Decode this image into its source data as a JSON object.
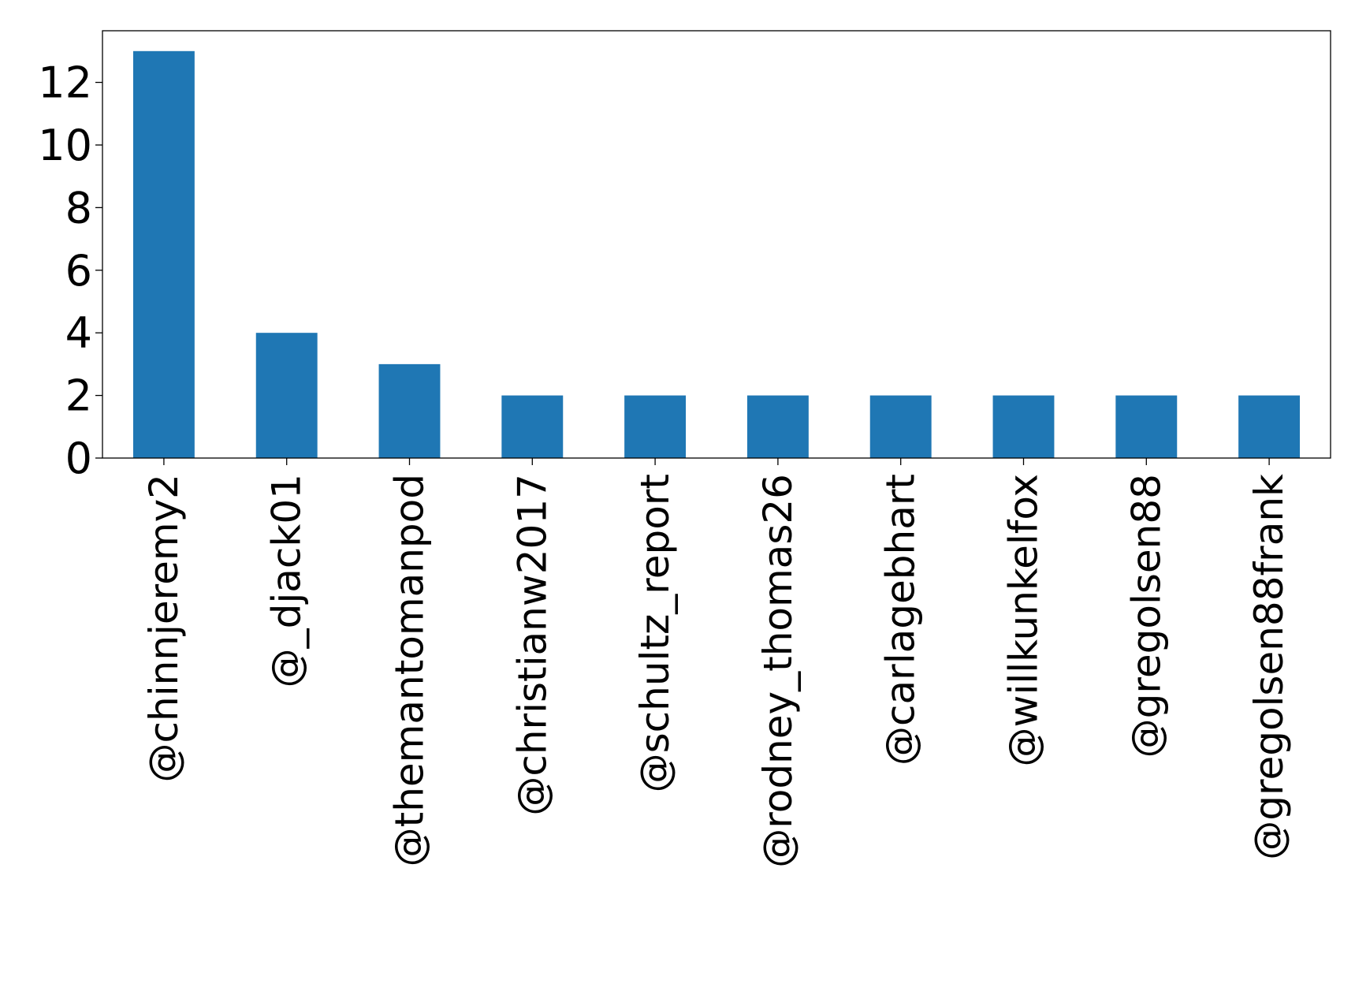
{
  "chart_data": {
    "type": "bar",
    "categories": [
      "@chinnjeremy2",
      "@_djack01",
      "@themantomanpod",
      "@christianw2017",
      "@schultz_report",
      "@rodney_thomas26",
      "@carlagebhart",
      "@willkunkelfox",
      "@gregolsen88",
      "@gregolsen88frank"
    ],
    "values": [
      13,
      4,
      3,
      2,
      2,
      2,
      2,
      2,
      2,
      2
    ],
    "yticks": [
      0,
      2,
      4,
      6,
      8,
      10,
      12
    ],
    "ylim": [
      0,
      13.65
    ],
    "title": "",
    "xlabel": "",
    "ylabel": "",
    "grid": false,
    "legend": "none",
    "bar_color": "#1f77b4"
  }
}
